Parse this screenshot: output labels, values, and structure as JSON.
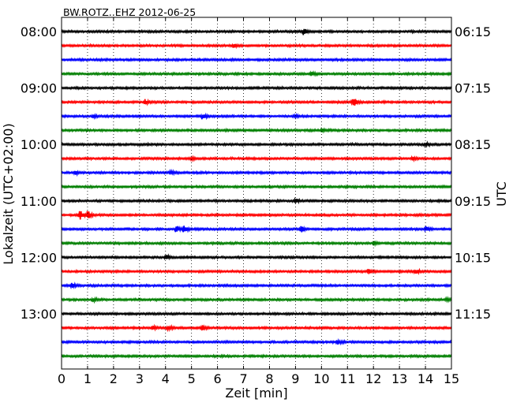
{
  "chart_data": {
    "type": "seismogram-dayplot",
    "title": "BW.ROTZ..EHZ 2012-06-25",
    "xlabel": "Zeit  [min]",
    "ylabel_left": "Lokalzeit (UTC+02:00)",
    "ylabel_right": "UTC",
    "xlim": [
      0,
      15
    ],
    "x_ticks": [
      0,
      1,
      2,
      3,
      4,
      5,
      6,
      7,
      8,
      9,
      10,
      11,
      12,
      13,
      14,
      15
    ],
    "x_tick_labels": [
      "0",
      "1",
      "2",
      "3",
      "4",
      "5",
      "6",
      "7",
      "8",
      "9",
      "10",
      "11",
      "12",
      "13",
      "14",
      "15"
    ],
    "grid_x": "dotted",
    "left_ticks": [
      {
        "trace": 0,
        "label": "08:00"
      },
      {
        "trace": 4,
        "label": "09:00"
      },
      {
        "trace": 8,
        "label": "10:00"
      },
      {
        "trace": 12,
        "label": "11:00"
      },
      {
        "trace": 16,
        "label": "12:00"
      },
      {
        "trace": 20,
        "label": "13:00"
      }
    ],
    "right_ticks": [
      {
        "trace": 0,
        "label": "06:15"
      },
      {
        "trace": 4,
        "label": "07:15"
      },
      {
        "trace": 8,
        "label": "08:15"
      },
      {
        "trace": 12,
        "label": "09:15"
      },
      {
        "trace": 16,
        "label": "10:15"
      },
      {
        "trace": 20,
        "label": "11:15"
      }
    ],
    "trace_colors": [
      "#000000",
      "#ff0000",
      "#0000ff",
      "#008000"
    ],
    "trace_count": 24,
    "traces": [
      {
        "events": [
          {
            "t": 9.3,
            "amp": 4
          }
        ]
      },
      {
        "events": [
          {
            "t": 6.6,
            "amp": 2
          }
        ]
      },
      {
        "events": []
      },
      {
        "events": [
          {
            "t": 9.6,
            "amp": 2
          }
        ]
      },
      {
        "events": []
      },
      {
        "events": [
          {
            "t": 3.2,
            "amp": 3
          },
          {
            "t": 11.2,
            "amp": 7
          }
        ]
      },
      {
        "events": [
          {
            "t": 1.2,
            "amp": 2
          },
          {
            "t": 5.4,
            "amp": 3
          },
          {
            "t": 9.0,
            "amp": 2
          }
        ]
      },
      {
        "events": [
          {
            "t": 10.0,
            "amp": 2
          }
        ]
      },
      {
        "events": [
          {
            "t": 14.0,
            "amp": 2
          }
        ]
      },
      {
        "events": [
          {
            "t": 5.0,
            "amp": 2
          },
          {
            "t": 13.5,
            "amp": 2
          }
        ]
      },
      {
        "events": [
          {
            "t": 0.5,
            "amp": 3
          },
          {
            "t": 4.2,
            "amp": 2
          }
        ]
      },
      {
        "events": []
      },
      {
        "events": [
          {
            "t": 9.0,
            "amp": 3
          }
        ]
      },
      {
        "events": [
          {
            "t": 0.7,
            "amp": 6
          },
          {
            "t": 1.0,
            "amp": 5
          }
        ]
      },
      {
        "events": [
          {
            "t": 4.4,
            "amp": 5
          },
          {
            "t": 4.7,
            "amp": 5
          },
          {
            "t": 9.2,
            "amp": 5
          },
          {
            "t": 14.0,
            "amp": 3
          }
        ]
      },
      {
        "events": [
          {
            "t": 12.0,
            "amp": 2
          }
        ]
      },
      {
        "events": [
          {
            "t": 4.0,
            "amp": 3
          }
        ]
      },
      {
        "events": [
          {
            "t": 11.8,
            "amp": 3
          },
          {
            "t": 13.6,
            "amp": 3
          }
        ]
      },
      {
        "events": [
          {
            "t": 0.4,
            "amp": 3
          }
        ]
      },
      {
        "events": [
          {
            "t": 1.2,
            "amp": 2
          },
          {
            "t": 14.8,
            "amp": 2
          }
        ]
      },
      {
        "events": []
      },
      {
        "events": [
          {
            "t": 3.5,
            "amp": 2
          },
          {
            "t": 4.1,
            "amp": 3
          },
          {
            "t": 5.4,
            "amp": 3
          }
        ]
      },
      {
        "events": [
          {
            "t": 10.6,
            "amp": 3
          }
        ]
      },
      {
        "events": []
      }
    ]
  }
}
